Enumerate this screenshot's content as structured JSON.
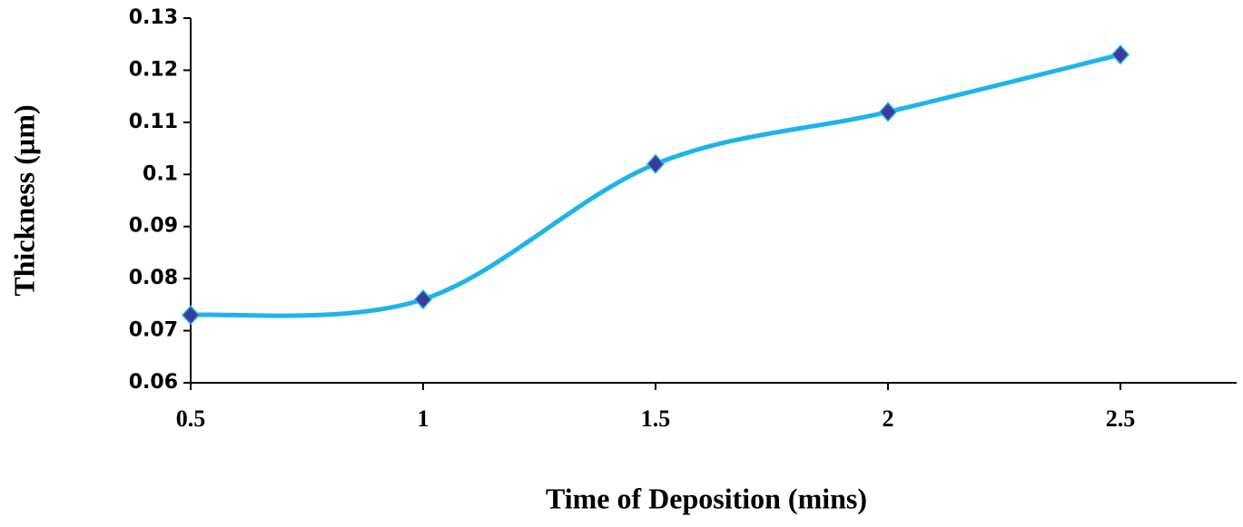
{
  "chart_data": {
    "type": "line",
    "x_label": "Time of Deposition (mins)",
    "y_label": "Thickness (µm)",
    "x": [
      0.5,
      1,
      1.5,
      2,
      2.5
    ],
    "values": [
      0.073,
      0.076,
      0.102,
      0.112,
      0.123
    ],
    "color": "#1eb4ea",
    "marker_color": "#3d3a9a",
    "smooth": true,
    "xlim": [
      0.5,
      2.75
    ],
    "xticks": [
      0.5,
      1,
      1.5,
      2,
      2.5
    ],
    "ylim": [
      0.06,
      0.13
    ],
    "yticks": [
      0.06,
      0.07,
      0.08,
      0.09,
      0.1,
      0.11,
      0.12,
      0.13
    ]
  }
}
